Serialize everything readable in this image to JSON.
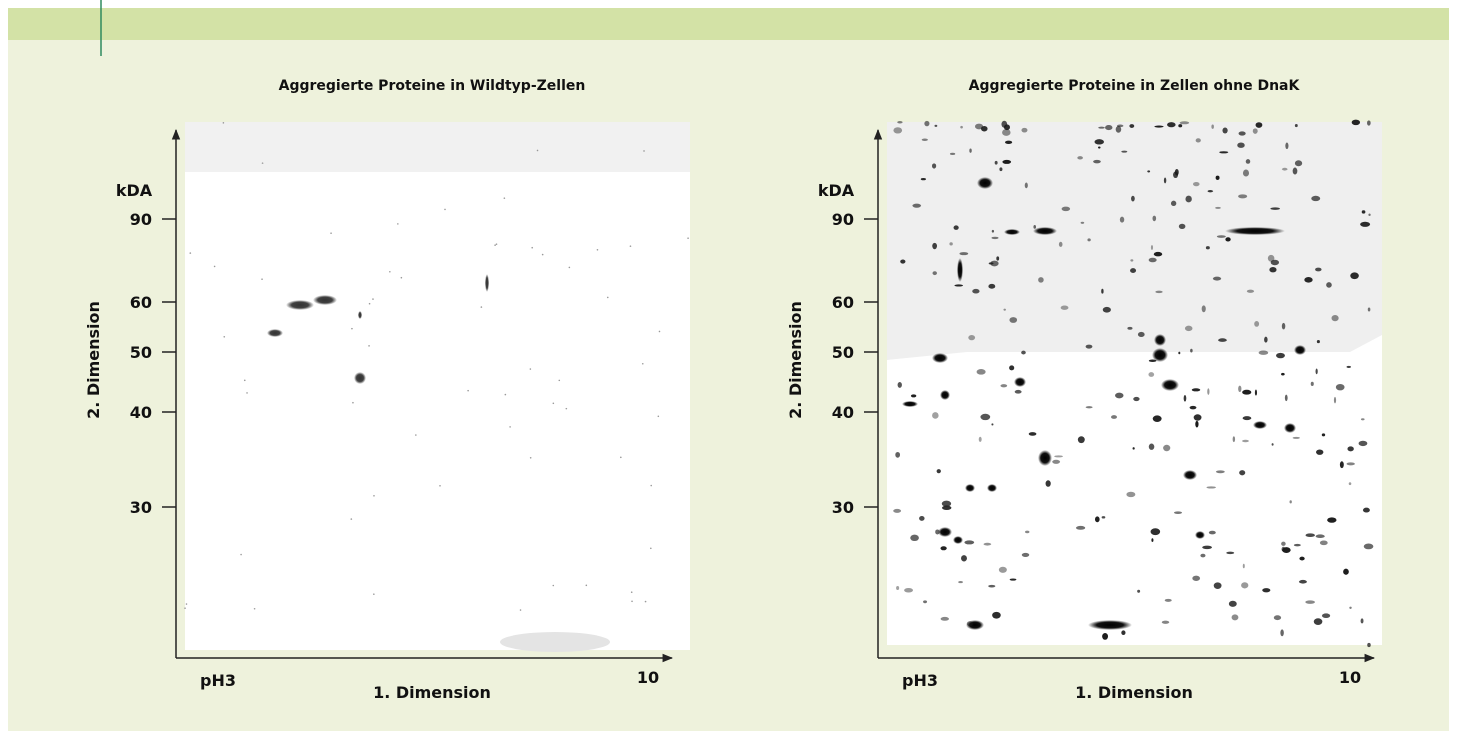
{
  "panels": [
    {
      "title": "Aggregierte Proteine in Wildtyp-Zellen",
      "y_unit": "kDA",
      "y_label": "2. Dimension",
      "y_ticks": [
        "90",
        "60",
        "50",
        "40",
        "30"
      ],
      "x_start": "pH3",
      "x_end": "10",
      "x_label": "1. Dimension"
    },
    {
      "title": "Aggregierte Proteine in Zellen ohne DnaK",
      "y_unit": "kDA",
      "y_label": "2. Dimension",
      "y_ticks": [
        "90",
        "60",
        "50",
        "40",
        "30"
      ],
      "x_start": "pH3",
      "x_end": "10",
      "x_label": "1. Dimension"
    }
  ]
}
